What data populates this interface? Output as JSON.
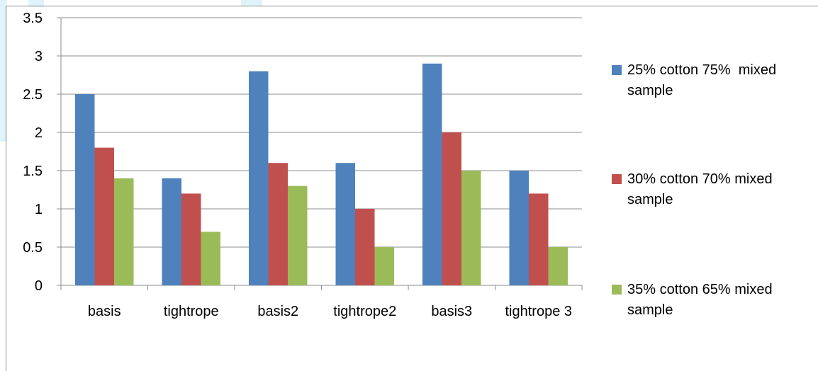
{
  "chart_data": {
    "type": "bar",
    "categories": [
      "basis",
      "tightrope",
      "basis2",
      "tightrope2",
      "basis3",
      "tightrope 3"
    ],
    "series": [
      {
        "name": "25% cotton 75%  mixed sample",
        "color": "#4f81bd",
        "values": [
          2.5,
          1.4,
          2.8,
          1.6,
          2.9,
          1.5
        ]
      },
      {
        "name": "30% cotton 70% mixed sample",
        "color": "#c0504d",
        "values": [
          1.8,
          1.2,
          1.6,
          1.0,
          2.0,
          1.2
        ]
      },
      {
        "name": "35% cotton 65% mixed sample",
        "color": "#9bbb59",
        "values": [
          1.4,
          0.7,
          1.3,
          0.5,
          1.5,
          0.5
        ]
      }
    ],
    "yticks": [
      "0",
      "0.5",
      "1",
      "1.5",
      "2",
      "2.5",
      "3",
      "3.5"
    ],
    "ylim": [
      0,
      3.5
    ],
    "grid": true,
    "legend_position": "right",
    "legend_lines": [
      [
        "25% cotton 75%  mixed",
        "sample"
      ],
      [
        "30% cotton 70% mixed",
        "sample"
      ],
      [
        "35% cotton 65% mixed",
        "sample"
      ]
    ]
  }
}
